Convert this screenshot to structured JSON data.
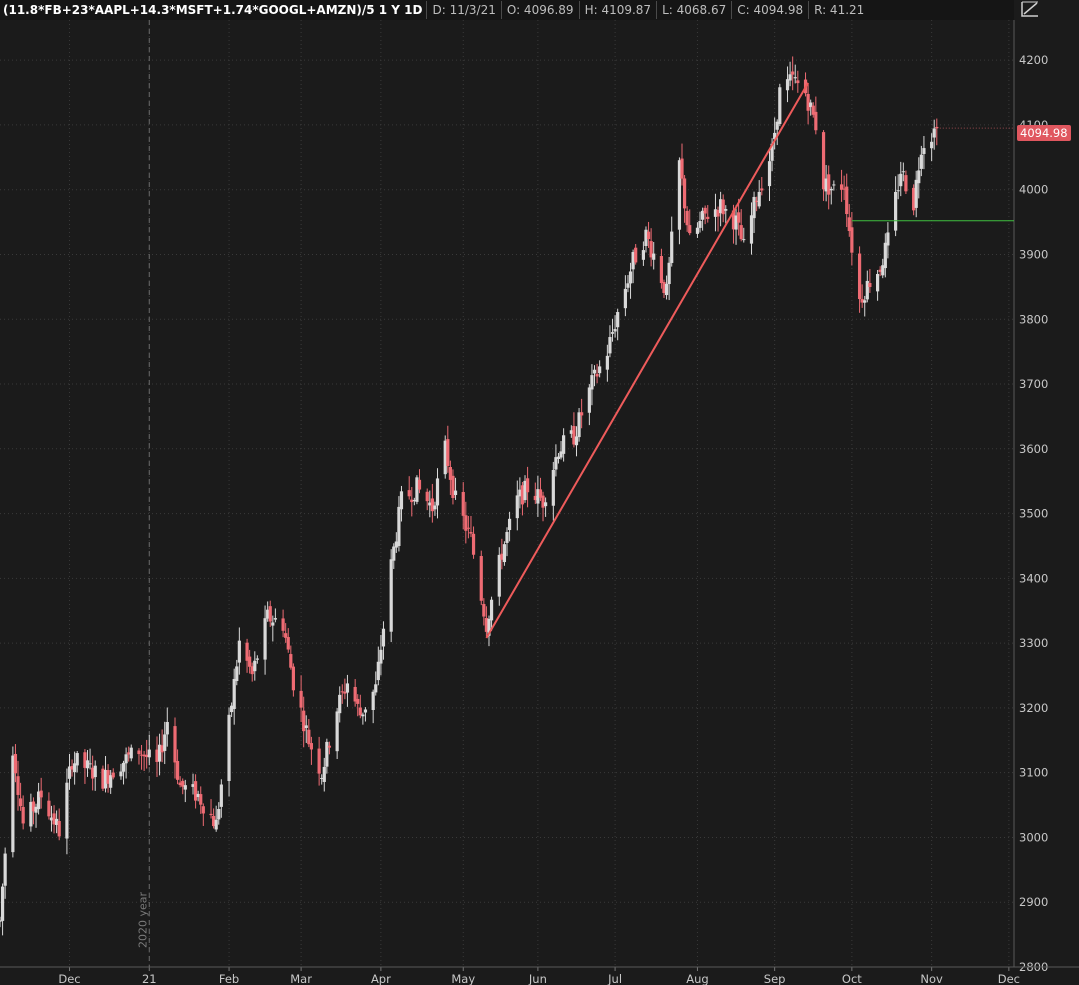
{
  "header": {
    "symbol": "(11.8*FB+23*AAPL+14.3*MSFT+1.74*GOOGL+AMZN)/5 1 Y 1D",
    "date": "D: 11/3/21",
    "open": "O: 4096.89",
    "high": "H: 4109.87",
    "low": "L: 4068.67",
    "close": "C: 4094.98",
    "range": "R: 41.21"
  },
  "last_price_label": "4094.98",
  "year_marker_label": "2020 year",
  "colors": {
    "background": "#1b1b1b",
    "up": "#d9d9d9",
    "down": "#ee6b73",
    "trendline": "#ee5b5b",
    "support": "#3fbf3f",
    "grid": "#3a3a3a"
  },
  "chart_data": {
    "type": "candlestick",
    "x_axis": {
      "tick_labels": [
        "Dec",
        "21",
        "Feb",
        "Mar",
        "Apr",
        "May",
        "Jun",
        "Jul",
        "Aug",
        "Sep",
        "Oct",
        "Nov",
        "Dec"
      ],
      "tick_dates": [
        "2020-12-01",
        "2021-01-01",
        "2021-02-01",
        "2021-03-01",
        "2021-04-01",
        "2021-05-03",
        "2021-06-01",
        "2021-07-01",
        "2021-08-02",
        "2021-09-01",
        "2021-10-01",
        "2021-11-01",
        "2021-12-01"
      ],
      "range": [
        "2020-11-04",
        "2021-12-03"
      ]
    },
    "y_axis": {
      "ticks": [
        2800,
        2900,
        3000,
        3100,
        3200,
        3300,
        3400,
        3500,
        3600,
        3700,
        3800,
        3900,
        4000,
        4100,
        4200
      ],
      "range": [
        2800,
        4262
      ]
    },
    "grid": true,
    "last_close": 4094.98,
    "price_path": [
      [
        "2020-11-04",
        2870
      ],
      [
        "2020-11-09",
        3140
      ],
      [
        "2020-11-13",
        3020
      ],
      [
        "2020-11-20",
        3065
      ],
      [
        "2020-11-27",
        3010
      ],
      [
        "2020-12-02",
        3120
      ],
      [
        "2020-12-09",
        3105
      ],
      [
        "2020-12-14",
        3090
      ],
      [
        "2020-12-21",
        3115
      ],
      [
        "2020-12-28",
        3135
      ],
      [
        "2021-01-04",
        3110
      ],
      [
        "2021-01-08",
        3180
      ],
      [
        "2021-01-13",
        3080
      ],
      [
        "2021-01-20",
        3065
      ],
      [
        "2021-01-27",
        3020
      ],
      [
        "2021-02-01",
        3175
      ],
      [
        "2021-02-05",
        3300
      ],
      [
        "2021-02-10",
        3250
      ],
      [
        "2021-02-16",
        3340
      ],
      [
        "2021-02-22",
        3330
      ],
      [
        "2021-02-26",
        3240
      ],
      [
        "2021-03-04",
        3150
      ],
      [
        "2021-03-09",
        3100
      ],
      [
        "2021-03-15",
        3200
      ],
      [
        "2021-03-19",
        3240
      ],
      [
        "2021-03-24",
        3190
      ],
      [
        "2021-03-30",
        3230
      ],
      [
        "2021-04-05",
        3420
      ],
      [
        "2021-04-09",
        3520
      ],
      [
        "2021-04-15",
        3540
      ],
      [
        "2021-04-21",
        3510
      ],
      [
        "2021-04-26",
        3600
      ],
      [
        "2021-04-30",
        3520
      ],
      [
        "2021-05-06",
        3460
      ],
      [
        "2021-05-12",
        3330
      ],
      [
        "2021-05-18",
        3440
      ],
      [
        "2021-05-24",
        3520
      ],
      [
        "2021-05-28",
        3540
      ],
      [
        "2021-06-03",
        3520
      ],
      [
        "2021-06-09",
        3600
      ],
      [
        "2021-06-15",
        3620
      ],
      [
        "2021-06-22",
        3700
      ],
      [
        "2021-06-28",
        3750
      ],
      [
        "2021-07-02",
        3810
      ],
      [
        "2021-07-08",
        3890
      ],
      [
        "2021-07-13",
        3930
      ],
      [
        "2021-07-16",
        3900
      ],
      [
        "2021-07-21",
        3840
      ],
      [
        "2021-07-26",
        4040
      ],
      [
        "2021-07-30",
        3920
      ],
      [
        "2021-08-05",
        3960
      ],
      [
        "2021-08-11",
        3975
      ],
      [
        "2021-08-17",
        3950
      ],
      [
        "2021-08-20",
        3910
      ],
      [
        "2021-08-25",
        3990
      ],
      [
        "2021-08-31",
        4060
      ],
      [
        "2021-09-03",
        4150
      ],
      [
        "2021-09-08",
        4170
      ],
      [
        "2021-09-13",
        4150
      ],
      [
        "2021-09-17",
        4100
      ],
      [
        "2021-09-20",
        4010
      ],
      [
        "2021-09-24",
        4000
      ],
      [
        "2021-09-28",
        4010
      ],
      [
        "2021-09-30",
        3940
      ],
      [
        "2021-10-04",
        3830
      ],
      [
        "2021-10-08",
        3860
      ],
      [
        "2021-10-12",
        3880
      ],
      [
        "2021-10-15",
        3920
      ],
      [
        "2021-10-20",
        4030
      ],
      [
        "2021-10-25",
        3980
      ],
      [
        "2021-10-28",
        4070
      ],
      [
        "2021-11-03",
        4094.98
      ]
    ],
    "trendline": {
      "from": [
        "2021-05-12",
        3308
      ],
      "to": [
        "2021-09-14",
        4165
      ],
      "color": "#ee5b5b"
    },
    "support_line": {
      "from": "2021-10-01",
      "to": "2021-12-03",
      "value": 3952,
      "color": "#3fbf3f"
    },
    "year_marker": "2021-01-01"
  }
}
